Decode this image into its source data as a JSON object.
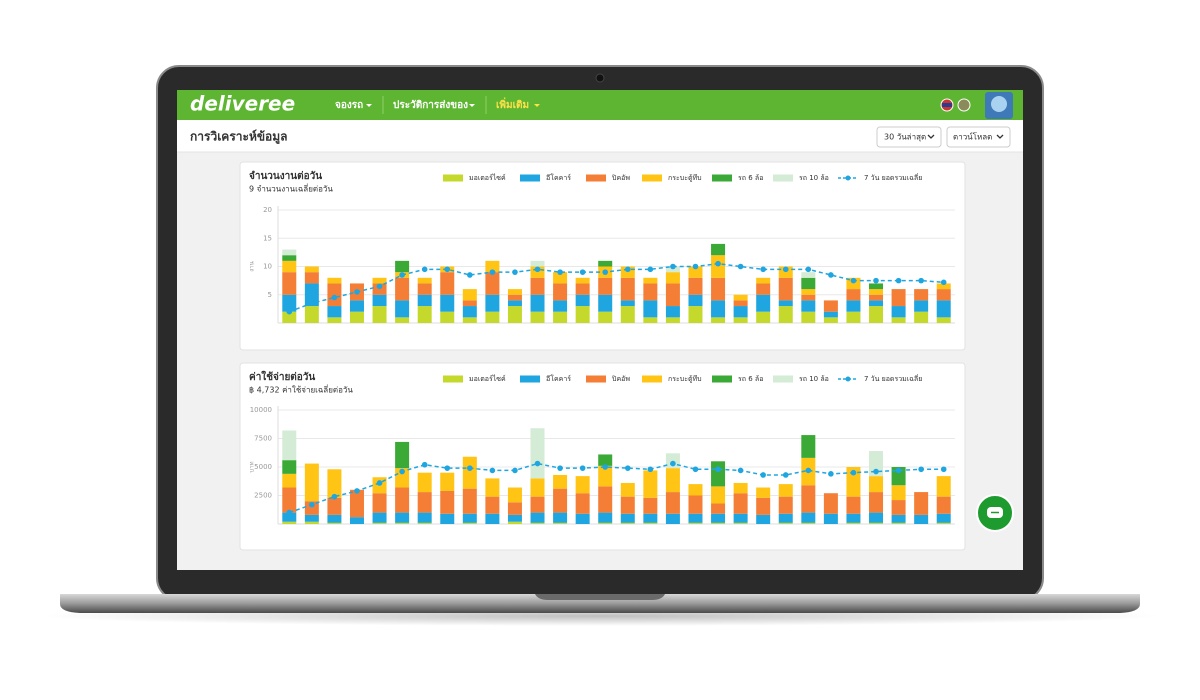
{
  "header": {
    "logo": "deliveree",
    "nav": [
      "จองรถ",
      "ประวัติการส่งของ",
      "เพิ่มเติม"
    ]
  },
  "toolbar": {
    "title": "การวิเคราะห์ข้อมูล",
    "range": "30 วันล่าสุด",
    "download": "ดาวน์โหลด"
  },
  "chart_data": [
    {
      "type": "bar",
      "stacked": true,
      "grid": true,
      "title": "จำนวนงานต่อวัน",
      "subtitle": "9 จำนวนงานเฉลี่ยต่อวัน",
      "y_label": "งาน",
      "categories": [
        null,
        null,
        null,
        null,
        null,
        null,
        null,
        null,
        null,
        null,
        null,
        null,
        null,
        null,
        null,
        null,
        null,
        null,
        null,
        null,
        null,
        null,
        null,
        null,
        null,
        null,
        null,
        null,
        null,
        null
      ],
      "ylim": [
        0,
        20
      ],
      "yticks": [
        5,
        10,
        15,
        20
      ],
      "series": [
        {
          "name": "มอเตอร์ไซค์",
          "color": "#c5d92d",
          "values": [
            2,
            3,
            1,
            2,
            3,
            1,
            3,
            2,
            1,
            2,
            3,
            2,
            2,
            3,
            2,
            3,
            1,
            1,
            3,
            1,
            1,
            2,
            3,
            2,
            1,
            2,
            3,
            1,
            2,
            1
          ]
        },
        {
          "name": "อีโคคาร์",
          "color": "#1fa6e0",
          "values": [
            3,
            4,
            2,
            2,
            2,
            3,
            2,
            3,
            2,
            3,
            1,
            3,
            2,
            2,
            3,
            1,
            3,
            2,
            2,
            3,
            2,
            3,
            1,
            2,
            1,
            2,
            1,
            2,
            2,
            3
          ]
        },
        {
          "name": "ปิคอัพ",
          "color": "#f47e36",
          "values": [
            4,
            2,
            4,
            3,
            2,
            4,
            2,
            4,
            1,
            4,
            1,
            3,
            3,
            2,
            3,
            4,
            3,
            4,
            3,
            4,
            1,
            2,
            4,
            1,
            2,
            2,
            1,
            3,
            2,
            2
          ]
        },
        {
          "name": "กระบะตู้ทึบ",
          "color": "#ffc414",
          "values": [
            2,
            1,
            1,
            0,
            1,
            1,
            1,
            1,
            2,
            2,
            1,
            2,
            2,
            1,
            2,
            2,
            1,
            2,
            2,
            4,
            1,
            1,
            2,
            1,
            0,
            2,
            1,
            0,
            0,
            1
          ]
        },
        {
          "name": "รถ 6 ล้อ",
          "color": "#3aa935",
          "values": [
            1,
            0,
            0,
            0,
            0,
            2,
            0,
            0,
            0,
            0,
            0,
            0,
            0,
            0,
            1,
            0,
            0,
            0,
            0,
            2,
            0,
            0,
            0,
            2,
            0,
            0,
            1,
            0,
            0,
            0
          ]
        },
        {
          "name": "รถ 10 ล้อ",
          "color": "#d4ebd5",
          "values": [
            1,
            0,
            0,
            0,
            0,
            0,
            0,
            0,
            0,
            0,
            0,
            1,
            0,
            0,
            0,
            0,
            0,
            1,
            0,
            0,
            0,
            0,
            0,
            1,
            0,
            0,
            0,
            0,
            0,
            0
          ]
        },
        {
          "name": "7 วัน ยอดรวมเฉลี่ย",
          "color": "#1fa6e0",
          "type": "line",
          "line_style": "dashed",
          "values": [
            2,
            3.5,
            4.5,
            5.5,
            6.5,
            8.5,
            9.5,
            9.5,
            8.5,
            9,
            9,
            9.5,
            9,
            9,
            9,
            9.5,
            9.5,
            10,
            10,
            10.5,
            10,
            9.5,
            9.5,
            9.5,
            8.5,
            7.5,
            7.5,
            7.5,
            7.5,
            7.2
          ]
        }
      ]
    },
    {
      "type": "bar",
      "stacked": true,
      "grid": true,
      "title": "ค่าใช้จ่ายต่อวัน",
      "subtitle": "฿ 4,732 ค่าใช้จ่ายเฉลี่ยต่อวัน",
      "y_label": "บาท",
      "categories": [
        null,
        null,
        null,
        null,
        null,
        null,
        null,
        null,
        null,
        null,
        null,
        null,
        null,
        null,
        null,
        null,
        null,
        null,
        null,
        null,
        null,
        null,
        null,
        null,
        null,
        null,
        null,
        null,
        null,
        null
      ],
      "ylim": [
        0,
        10000
      ],
      "yticks": [
        2500,
        5000,
        7500,
        10000
      ],
      "series": [
        {
          "name": "มอเตอร์ไซค์",
          "color": "#c5d92d",
          "values": [
            200,
            200,
            100,
            0,
            100,
            100,
            100,
            0,
            100,
            0,
            200,
            100,
            100,
            0,
            100,
            100,
            100,
            0,
            100,
            100,
            100,
            0,
            100,
            100,
            0,
            100,
            100,
            100,
            0,
            100
          ]
        },
        {
          "name": "อีโคคาร์",
          "color": "#1fa6e0",
          "values": [
            800,
            600,
            700,
            600,
            900,
            900,
            900,
            900,
            800,
            900,
            600,
            900,
            900,
            900,
            900,
            800,
            800,
            900,
            800,
            800,
            800,
            800,
            800,
            900,
            900,
            800,
            900,
            700,
            800,
            800
          ]
        },
        {
          "name": "ปิคอัพ",
          "color": "#f47e36",
          "values": [
            2200,
            1200,
            1500,
            2400,
            1700,
            2200,
            1800,
            2000,
            2200,
            1500,
            1100,
            1400,
            2100,
            1800,
            2300,
            1500,
            1400,
            1900,
            1600,
            900,
            1800,
            1500,
            1500,
            2400,
            1800,
            1500,
            1800,
            1300,
            2000,
            1500
          ]
        },
        {
          "name": "กระบะตู้ทึบ",
          "color": "#ffc414",
          "values": [
            1200,
            3300,
            2500,
            0,
            1400,
            1700,
            1700,
            1600,
            2800,
            1600,
            1300,
            1600,
            1200,
            1500,
            1800,
            1200,
            2400,
            2100,
            1000,
            1500,
            900,
            900,
            1100,
            2400,
            0,
            2600,
            1400,
            1300,
            0,
            1800
          ]
        },
        {
          "name": "รถ 6 ล้อ",
          "color": "#3aa935",
          "values": [
            1200,
            0,
            0,
            0,
            0,
            2300,
            0,
            0,
            0,
            0,
            0,
            0,
            0,
            0,
            1000,
            0,
            0,
            0,
            0,
            2200,
            0,
            0,
            0,
            2000,
            0,
            0,
            0,
            1600,
            0,
            0
          ]
        },
        {
          "name": "รถ 10 ล้อ",
          "color": "#d4ebd5",
          "values": [
            2600,
            0,
            0,
            0,
            0,
            0,
            0,
            0,
            0,
            0,
            0,
            4400,
            0,
            0,
            0,
            0,
            0,
            1300,
            0,
            0,
            0,
            0,
            0,
            0,
            0,
            0,
            2200,
            0,
            0,
            0
          ]
        },
        {
          "name": "7 วัน ยอดรวมเฉลี่ย",
          "color": "#1fa6e0",
          "type": "line",
          "line_style": "dashed",
          "values": [
            1000,
            1700,
            2400,
            2900,
            3600,
            4600,
            5200,
            4900,
            4900,
            4700,
            4700,
            5300,
            4900,
            4900,
            5000,
            4900,
            4800,
            5300,
            4800,
            4800,
            4700,
            4300,
            4300,
            4700,
            4400,
            4500,
            4600,
            4700,
            4800,
            4800
          ]
        }
      ]
    }
  ]
}
